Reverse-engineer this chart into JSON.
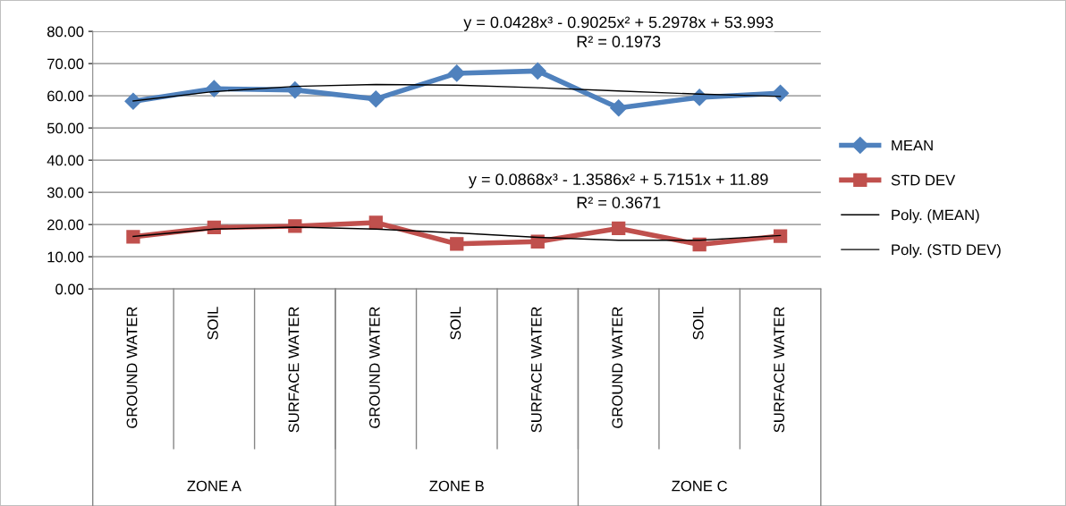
{
  "chart_data": {
    "type": "line",
    "categories": [
      "GROUND WATER",
      "SOIL",
      "SURFACE WATER",
      "GROUND WATER",
      "SOIL",
      "SURFACE WATER",
      "GROUND WATER",
      "SOIL",
      "SURFACE WATER"
    ],
    "series": [
      {
        "name": "MEAN",
        "color": "#4f81bd",
        "marker": "diamond",
        "values": [
          58.3,
          62.2,
          61.8,
          59.0,
          67.0,
          67.7,
          56.2,
          59.5,
          60.8
        ]
      },
      {
        "name": "STD DEV",
        "color": "#c0504d",
        "marker": "square",
        "values": [
          16.2,
          19.1,
          19.5,
          20.6,
          14.0,
          14.7,
          18.8,
          13.8,
          16.4
        ]
      },
      {
        "name": "Poly. (MEAN)",
        "color": "#000000",
        "marker": "none",
        "values": [
          58.4,
          61.3,
          62.9,
          63.5,
          63.3,
          62.5,
          61.5,
          60.5,
          59.8
        ]
      },
      {
        "name": "Poly. (STD DEV)",
        "color": "#000000",
        "marker": "none",
        "values": [
          16.3,
          18.6,
          19.2,
          18.6,
          17.4,
          16.0,
          15.1,
          15.1,
          16.6
        ]
      }
    ],
    "annotations": [
      "y = 0.0428x³ - 0.9025x² + 5.2978x + 53.993",
      "R² = 0.1973",
      "y = 0.0868x³ - 1.3586x² + 5.7151x + 11.89",
      "R² = 0.3671",
      "ZONE A",
      "ZONE B",
      "ZONE C"
    ],
    "ylim": [
      0,
      80
    ],
    "yticks": [
      {
        "value": 0,
        "label": "0.00"
      },
      {
        "value": 10,
        "label": "10.00"
      },
      {
        "value": 20,
        "label": "20.00"
      },
      {
        "value": 30,
        "label": "30.00"
      },
      {
        "value": 40,
        "label": "40.00"
      },
      {
        "value": 50,
        "label": "50.00"
      },
      {
        "value": 60,
        "label": "60.00"
      },
      {
        "value": 70,
        "label": "70.00"
      },
      {
        "value": 80,
        "label": "80.00"
      }
    ],
    "grid": "y",
    "legend": "right"
  }
}
